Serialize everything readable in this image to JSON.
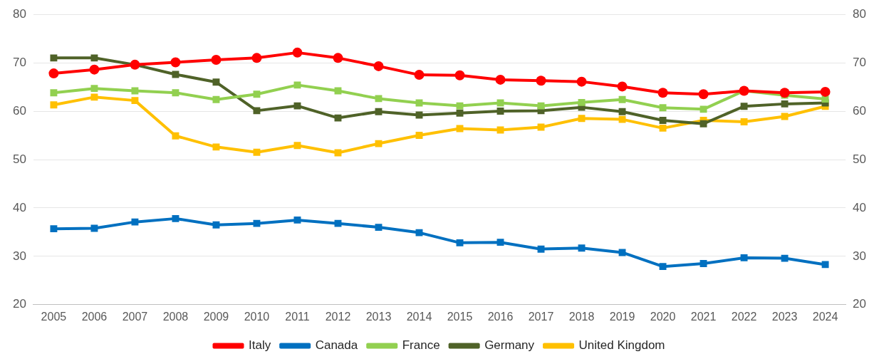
{
  "chart_data": {
    "type": "line",
    "categories": [
      "2005",
      "2006",
      "2007",
      "2008",
      "2009",
      "2010",
      "2011",
      "2012",
      "2013",
      "2014",
      "2015",
      "2016",
      "2017",
      "2018",
      "2019",
      "2020",
      "2021",
      "2022",
      "2023",
      "2024"
    ],
    "series": [
      {
        "name": "Italy",
        "color": "#ff0000",
        "marker": "circle",
        "values": [
          67.8,
          68.6,
          69.6,
          70.1,
          70.6,
          71.0,
          72.1,
          71.0,
          69.3,
          67.5,
          67.4,
          66.5,
          66.3,
          66.1,
          65.1,
          63.8,
          63.5,
          64.2,
          63.8,
          64.0
        ]
      },
      {
        "name": "Canada",
        "color": "#0070c0",
        "marker": "square",
        "values": [
          35.7,
          35.8,
          37.1,
          37.8,
          36.5,
          36.8,
          37.5,
          36.8,
          36.0,
          34.9,
          32.8,
          32.9,
          31.5,
          31.7,
          30.8,
          27.9,
          28.5,
          29.7,
          29.6,
          28.3
        ]
      },
      {
        "name": "France",
        "color": "#92d050",
        "marker": "square",
        "values": [
          63.8,
          64.7,
          64.2,
          63.8,
          62.4,
          63.5,
          65.4,
          64.2,
          62.6,
          61.7,
          61.1,
          61.7,
          61.1,
          61.8,
          62.4,
          60.7,
          60.4,
          64.2,
          63.3,
          62.5
        ]
      },
      {
        "name": "Germany",
        "color": "#4f6228",
        "marker": "square",
        "values": [
          71.0,
          71.0,
          69.6,
          67.6,
          66.0,
          60.1,
          61.1,
          58.6,
          59.9,
          59.2,
          59.6,
          60.0,
          60.1,
          60.8,
          59.9,
          58.1,
          57.4,
          61.0,
          61.5,
          61.7
        ]
      },
      {
        "name": "United Kingdom",
        "color": "#ffc000",
        "marker": "square",
        "values": [
          61.3,
          62.9,
          62.2,
          54.9,
          52.6,
          51.5,
          52.9,
          51.4,
          53.3,
          55.0,
          56.4,
          56.1,
          56.7,
          58.5,
          58.3,
          56.5,
          58.1,
          57.8,
          58.9,
          61.0
        ]
      }
    ],
    "ylim": [
      20,
      80
    ],
    "yticks": [
      20,
      30,
      40,
      50,
      60,
      70,
      80
    ],
    "y2lim": [
      20,
      80
    ],
    "y2ticks": [
      20,
      30,
      40,
      50,
      60,
      70,
      80
    ],
    "grid": "y",
    "legend": "bottom",
    "line_style": "solid"
  }
}
